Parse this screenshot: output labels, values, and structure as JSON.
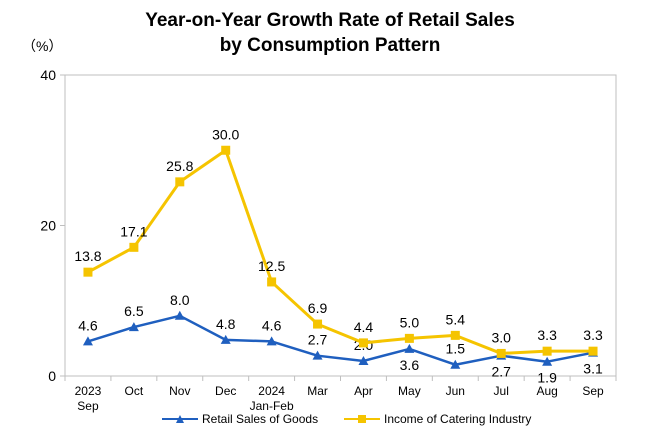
{
  "chart_data": {
    "type": "line",
    "title_line1": "Year-on-Year Growth Rate of Retail Sales",
    "title_line2": "by Consumption Pattern",
    "unit_label": "（%）",
    "ylim": [
      0,
      40
    ],
    "yticks": [
      "0",
      "20",
      "40"
    ],
    "categories": [
      {
        "line1": "2023",
        "line2": "Sep"
      },
      {
        "line1": "Oct",
        "line2": ""
      },
      {
        "line1": "Nov",
        "line2": ""
      },
      {
        "line1": "Dec",
        "line2": ""
      },
      {
        "line1": "2024",
        "line2": "Jan-Feb"
      },
      {
        "line1": "Mar",
        "line2": ""
      },
      {
        "line1": "Apr",
        "line2": ""
      },
      {
        "line1": "May",
        "line2": ""
      },
      {
        "line1": "Jun",
        "line2": ""
      },
      {
        "line1": "Jul",
        "line2": ""
      },
      {
        "line1": "Aug",
        "line2": ""
      },
      {
        "line1": "Sep",
        "line2": ""
      }
    ],
    "grid": false,
    "legend_position": "bottom",
    "series": [
      {
        "name": "Retail Sales of Goods",
        "color": "#1f5fbf",
        "marker": "triangle",
        "values": [
          4.6,
          6.5,
          8.0,
          4.8,
          4.6,
          2.7,
          2.0,
          3.6,
          1.5,
          2.7,
          1.9,
          3.1
        ],
        "labels": [
          "4.6",
          "6.5",
          "8.0",
          "4.8",
          "4.6",
          "2.7",
          "2.0",
          "3.6",
          "1.5",
          "2.7",
          "1.9",
          "3.1"
        ],
        "label_side": [
          "above",
          "above",
          "above",
          "above",
          "above",
          "above",
          "above",
          "below",
          "above",
          "below",
          "below",
          "below"
        ]
      },
      {
        "name": "Income of Catering Industry",
        "color": "#f5c400",
        "marker": "square",
        "values": [
          13.8,
          17.1,
          25.8,
          30.0,
          12.5,
          6.9,
          4.4,
          5.0,
          5.4,
          3.0,
          3.3,
          3.3
        ],
        "labels": [
          "13.8",
          "17.1",
          "25.8",
          "30.0",
          "12.5",
          "6.9",
          "4.4",
          "5.0",
          "5.4",
          "3.0",
          "3.3",
          "3.3"
        ],
        "label_side": [
          "above",
          "above",
          "above",
          "above",
          "above",
          "above",
          "above",
          "above",
          "above",
          "above",
          "above",
          "above"
        ]
      }
    ]
  }
}
